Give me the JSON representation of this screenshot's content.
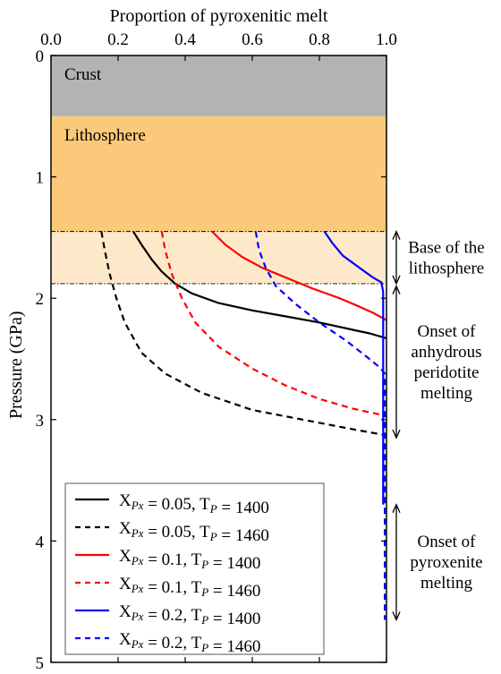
{
  "chart_data": {
    "type": "line",
    "xlabel": "Proportion of pyroxenitic melt",
    "ylabel": "Pressure (GPa)",
    "xlim": [
      0,
      1
    ],
    "ylim": [
      0,
      5
    ],
    "y_inverted": true,
    "x_axis_position": "top",
    "x_ticks": [
      "0.0",
      "0.2",
      "0.4",
      "0.6",
      "0.8",
      "1.0"
    ],
    "y_ticks": [
      "0",
      "1",
      "2",
      "3",
      "4",
      "5"
    ],
    "grid": false,
    "legend_position": "bottom-left",
    "layers": [
      {
        "label": "Crust",
        "top": 0,
        "bottom": 0.5,
        "color": "#b3b3b3"
      },
      {
        "label": "Lithosphere",
        "top": 0.5,
        "bottom": 1.45,
        "color": "#fbc97a"
      },
      {
        "label": "",
        "top": 1.45,
        "bottom": 1.88,
        "color": "#fde9c9"
      }
    ],
    "reference_lines": [
      {
        "pressure": 1.45,
        "style": "dash-dot"
      },
      {
        "pressure": 1.88,
        "style": "dash-dot"
      }
    ],
    "annotations": [
      {
        "lines": [
          "Base of the",
          "lithosphere"
        ],
        "from": 1.45,
        "to": 1.88
      },
      {
        "lines": [
          "Onset of",
          "anhydrous",
          "peridotite",
          "melting"
        ],
        "from": 1.9,
        "to": 3.15
      },
      {
        "lines": [
          "Onset of",
          "pyroxenite",
          "melting"
        ],
        "from": 3.7,
        "to": 4.65
      }
    ],
    "series": [
      {
        "legend": {
          "prefix": "X",
          "sub1": "Px",
          "mid": " = 0.05, T",
          "sub2": "P",
          "suffix": " = 1400"
        },
        "color": "#000000",
        "dash": false,
        "points": [
          [
            0.245,
            1.45
          ],
          [
            0.27,
            1.56
          ],
          [
            0.3,
            1.68
          ],
          [
            0.33,
            1.78
          ],
          [
            0.37,
            1.88
          ],
          [
            0.42,
            1.96
          ],
          [
            0.5,
            2.04
          ],
          [
            0.6,
            2.1
          ],
          [
            0.7,
            2.15
          ],
          [
            0.8,
            2.2
          ],
          [
            0.9,
            2.26
          ],
          [
            0.95,
            2.29
          ],
          [
            1.0,
            2.33
          ]
        ]
      },
      {
        "legend": {
          "prefix": "X",
          "sub1": "Px",
          "mid": " = 0.05, T",
          "sub2": "P",
          "suffix": " = 1460"
        },
        "color": "#000000",
        "dash": true,
        "points": [
          [
            0.15,
            1.45
          ],
          [
            0.16,
            1.6
          ],
          [
            0.175,
            1.8
          ],
          [
            0.195,
            2.0
          ],
          [
            0.22,
            2.2
          ],
          [
            0.27,
            2.45
          ],
          [
            0.34,
            2.62
          ],
          [
            0.45,
            2.78
          ],
          [
            0.6,
            2.92
          ],
          [
            0.75,
            3.0
          ],
          [
            0.9,
            3.08
          ],
          [
            1.0,
            3.13
          ]
        ]
      },
      {
        "legend": {
          "prefix": "X",
          "sub1": "Px",
          "mid": " = 0.1, T",
          "sub2": "P",
          "suffix": " = 1400"
        },
        "color": "#ff0000",
        "dash": false,
        "points": [
          [
            0.48,
            1.45
          ],
          [
            0.52,
            1.56
          ],
          [
            0.57,
            1.66
          ],
          [
            0.63,
            1.75
          ],
          [
            0.7,
            1.83
          ],
          [
            0.78,
            1.92
          ],
          [
            0.86,
            2.0
          ],
          [
            0.92,
            2.07
          ],
          [
            0.96,
            2.12
          ],
          [
            1.0,
            2.18
          ]
        ]
      },
      {
        "legend": {
          "prefix": "X",
          "sub1": "Px",
          "mid": " = 0.1, T",
          "sub2": "P",
          "suffix": " = 1460"
        },
        "color": "#ff0000",
        "dash": true,
        "points": [
          [
            0.33,
            1.45
          ],
          [
            0.34,
            1.6
          ],
          [
            0.36,
            1.8
          ],
          [
            0.39,
            2.0
          ],
          [
            0.43,
            2.2
          ],
          [
            0.5,
            2.4
          ],
          [
            0.6,
            2.58
          ],
          [
            0.7,
            2.72
          ],
          [
            0.8,
            2.83
          ],
          [
            0.9,
            2.91
          ],
          [
            1.0,
            2.97
          ]
        ]
      },
      {
        "legend": {
          "prefix": "X",
          "sub1": "Px",
          "mid": " = 0.2, T",
          "sub2": "P",
          "suffix": " = 1400"
        },
        "color": "#0000ff",
        "dash": false,
        "points": [
          [
            0.815,
            1.45
          ],
          [
            0.84,
            1.55
          ],
          [
            0.87,
            1.65
          ],
          [
            0.92,
            1.75
          ],
          [
            0.96,
            1.83
          ],
          [
            0.985,
            1.87
          ],
          [
            0.99,
            1.95
          ],
          [
            0.99,
            2.5
          ],
          [
            0.99,
            3.2
          ],
          [
            0.99,
            3.7
          ]
        ]
      },
      {
        "legend": {
          "prefix": "X",
          "sub1": "Px",
          "mid": " = 0.2, T",
          "sub2": "P",
          "suffix": " = 1460"
        },
        "color": "#0000ff",
        "dash": true,
        "points": [
          [
            0.61,
            1.45
          ],
          [
            0.62,
            1.6
          ],
          [
            0.64,
            1.75
          ],
          [
            0.67,
            1.9
          ],
          [
            0.73,
            2.05
          ],
          [
            0.8,
            2.2
          ],
          [
            0.88,
            2.35
          ],
          [
            0.94,
            2.48
          ],
          [
            0.98,
            2.57
          ],
          [
            0.995,
            2.62
          ],
          [
            0.995,
            3.2
          ],
          [
            0.995,
            4.0
          ],
          [
            0.995,
            4.65
          ]
        ]
      }
    ]
  }
}
